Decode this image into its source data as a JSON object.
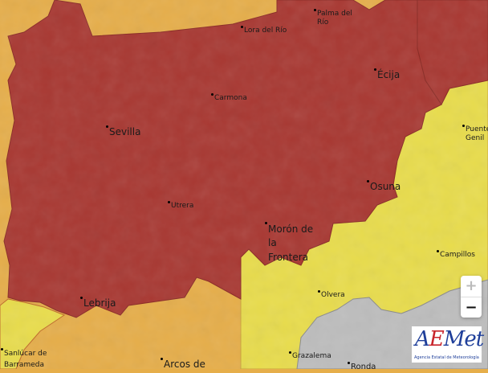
{
  "colors": {
    "red_warning": "#a83832",
    "orange_warning": "#e6ae4a",
    "yellow_warning": "#e8dc4c",
    "terrain": "#bdbdbd"
  },
  "places": [
    {
      "name": "Palma del\nRío",
      "lines": [
        "Palma del",
        "Río"
      ]
    },
    {
      "lines": [
        "Lora del Río"
      ]
    },
    {
      "lines": [
        "Écija"
      ]
    },
    {
      "lines": [
        "Carmona"
      ]
    },
    {
      "lines": [
        "Sevilla"
      ]
    },
    {
      "lines": [
        "Puente",
        "Genil"
      ]
    },
    {
      "lines": [
        "Osuna"
      ]
    },
    {
      "lines": [
        "Utrera"
      ]
    },
    {
      "lines": [
        "Morón de",
        "la",
        "Frontera"
      ]
    },
    {
      "lines": [
        "Campillos"
      ]
    },
    {
      "lines": [
        "Olvera"
      ]
    },
    {
      "lines": [
        "Lebrija"
      ]
    },
    {
      "lines": [
        "Sanlúcar de",
        "Barrameda"
      ]
    },
    {
      "lines": [
        "Arcos de"
      ]
    },
    {
      "lines": [
        "Grazalema"
      ]
    },
    {
      "lines": [
        "Ronda"
      ]
    }
  ],
  "zoom_controls": {
    "zoom_in": "+",
    "zoom_out": "−"
  },
  "logo": {
    "brand": "AEMet",
    "subtitle": "Agencia Estatal de Meteorología"
  }
}
